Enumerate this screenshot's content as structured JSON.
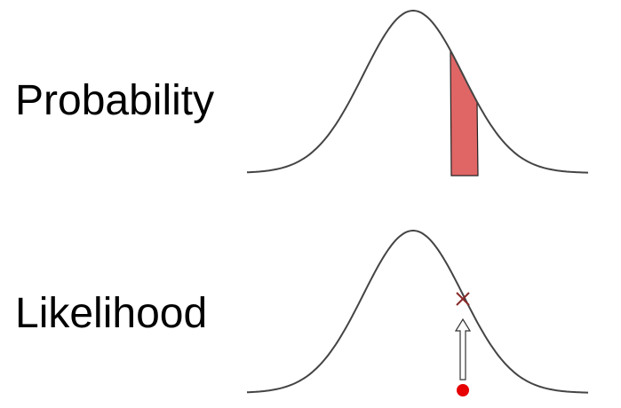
{
  "labels": [
    "Probability",
    "Likelihood"
  ]
}
